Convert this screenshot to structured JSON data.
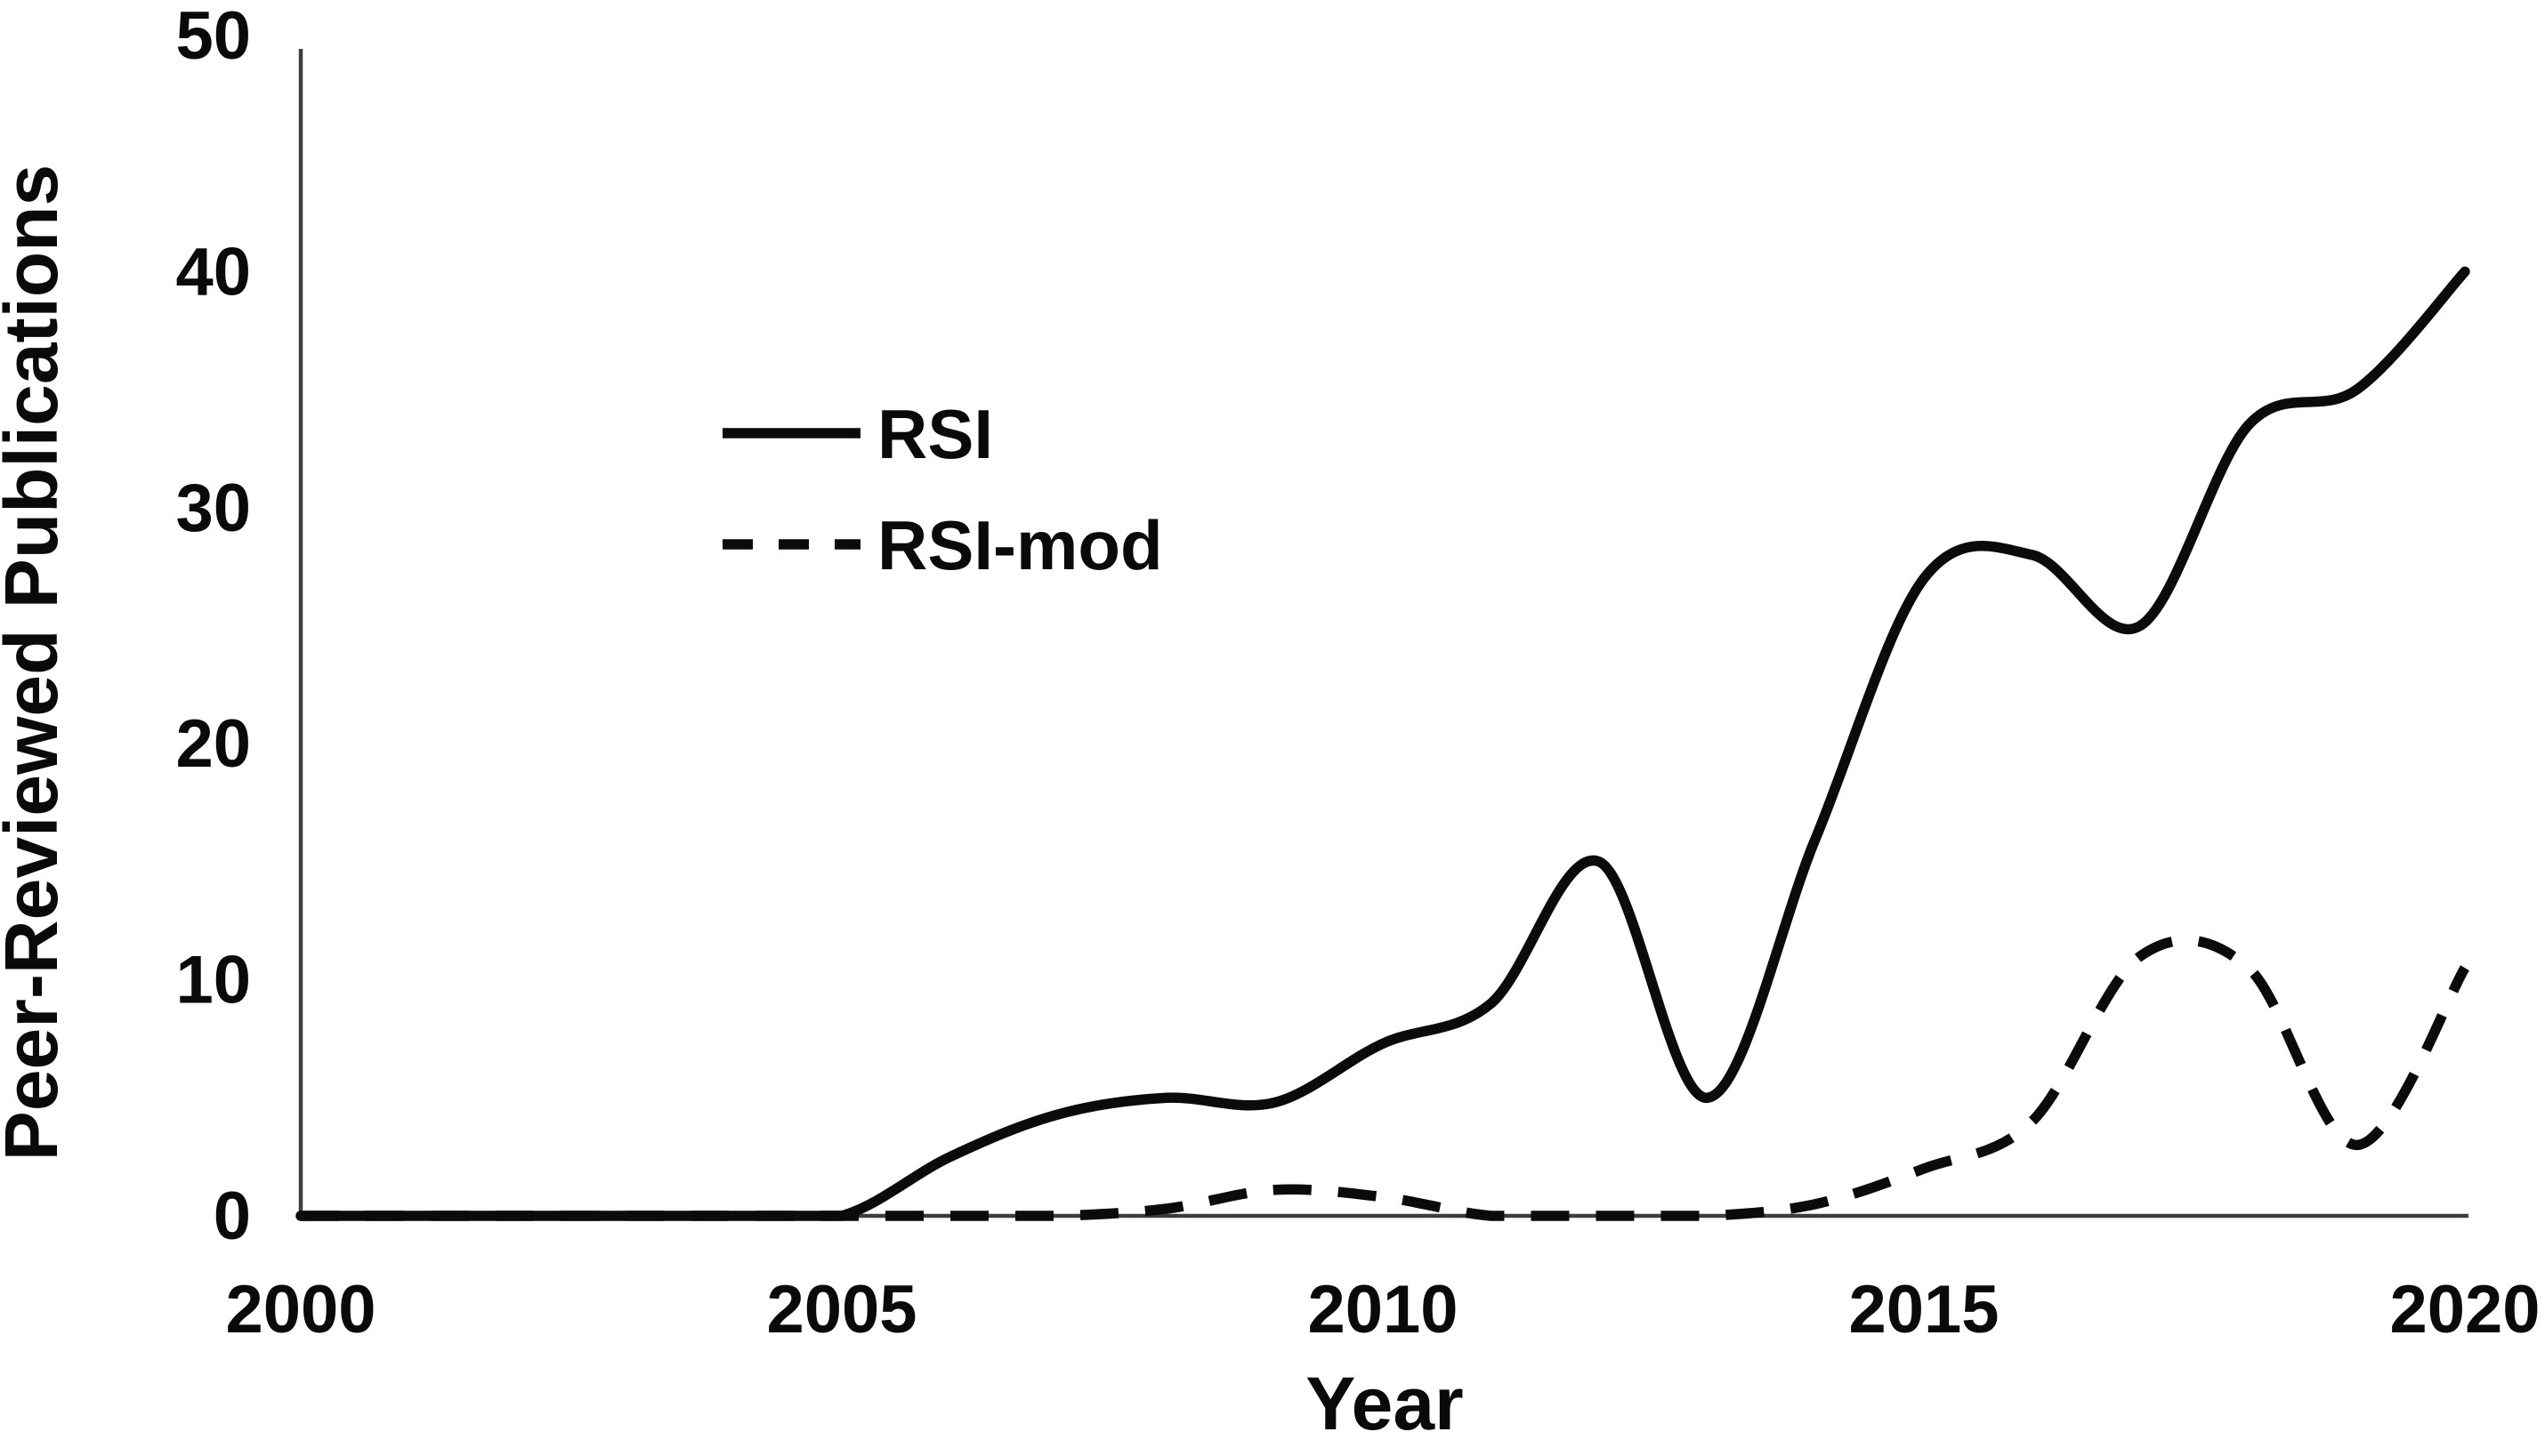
{
  "figure": {
    "background_color": "#ffffff",
    "line_color": "#0b0b0b",
    "axis_color": "#3d3d3d"
  },
  "chart_data": {
    "type": "line",
    "title": "",
    "xlabel": "Year",
    "ylabel": "Peer-Reviewed Publications",
    "xlim": [
      2000,
      2020
    ],
    "ylim": [
      0,
      50
    ],
    "grid": false,
    "legend_position": "upper-left-inside",
    "xticks": [
      2000,
      2005,
      2010,
      2015,
      2020
    ],
    "yticks": [
      0,
      10,
      20,
      30,
      40,
      50
    ],
    "x": [
      2000,
      2001,
      2002,
      2003,
      2004,
      2005,
      2006,
      2007,
      2008,
      2009,
      2010,
      2011,
      2012,
      2013,
      2014,
      2015,
      2016,
      2017,
      2018,
      2019,
      2020
    ],
    "series": [
      {
        "name": "RSI",
        "style": "solid",
        "color": "#0b0b0b",
        "values": [
          0,
          0,
          0,
          0,
          0,
          0,
          2.5,
          4.3,
          5,
          4.8,
          7.3,
          9,
          15,
          5,
          16,
          27,
          28,
          25,
          33.5,
          35,
          40
        ]
      },
      {
        "name": "RSI-mod",
        "style": "dashed",
        "color": "#0b0b0b",
        "values": [
          0,
          0,
          0,
          0,
          0,
          0,
          0,
          0,
          0.3,
          1.1,
          0.8,
          0,
          0,
          0,
          0.5,
          2,
          4,
          11,
          10.5,
          3,
          10.5
        ]
      }
    ]
  }
}
